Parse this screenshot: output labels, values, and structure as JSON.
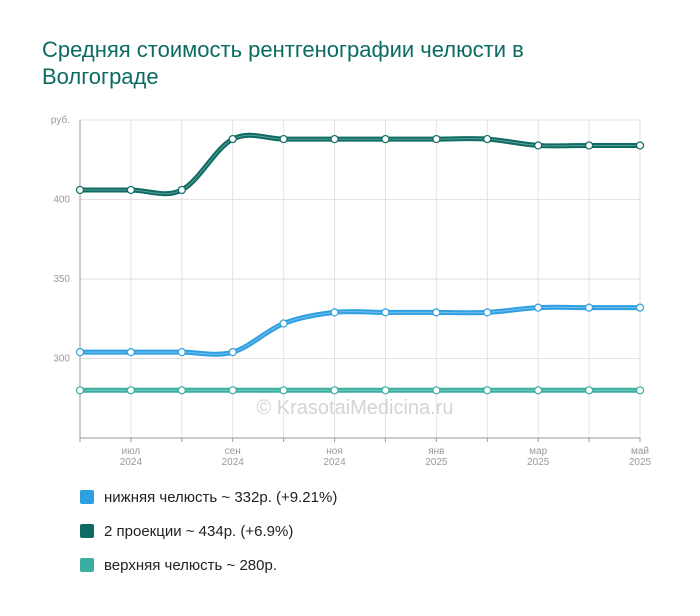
{
  "chart_data": {
    "type": "line",
    "title": "Средняя стоимость рентгенографии челюсти в Волгограде",
    "watermark": "© KrasotaiMedicina.ru",
    "categories": [
      null,
      "июл 2024",
      null,
      "сен 2024",
      null,
      "ноя 2024",
      null,
      "янв 2025",
      null,
      "мар 2025",
      null,
      "май 2025"
    ],
    "series": [
      {
        "name": "нижняя челюсть ~ 332р. (+9.21%)",
        "color": "#2e9fe0",
        "values": [
          304,
          304,
          304,
          304,
          322,
          329,
          329,
          329,
          329,
          332,
          332,
          332
        ]
      },
      {
        "name": "2 проекции ~ 434р. (+6.9%)",
        "color": "#0c6b62",
        "values": [
          406,
          406,
          406,
          438,
          438,
          438,
          438,
          438,
          438,
          434,
          434,
          434
        ]
      },
      {
        "name": "верхняя челюсть ~ 280р.",
        "color": "#3aaea0",
        "values": [
          280,
          280,
          280,
          280,
          280,
          280,
          280,
          280,
          280,
          280,
          280,
          280
        ]
      }
    ],
    "ylim": [
      250,
      450
    ],
    "yticks": [
      300,
      350,
      400,
      {
        "value": 450,
        "label": "руб."
      }
    ],
    "grid": true
  }
}
